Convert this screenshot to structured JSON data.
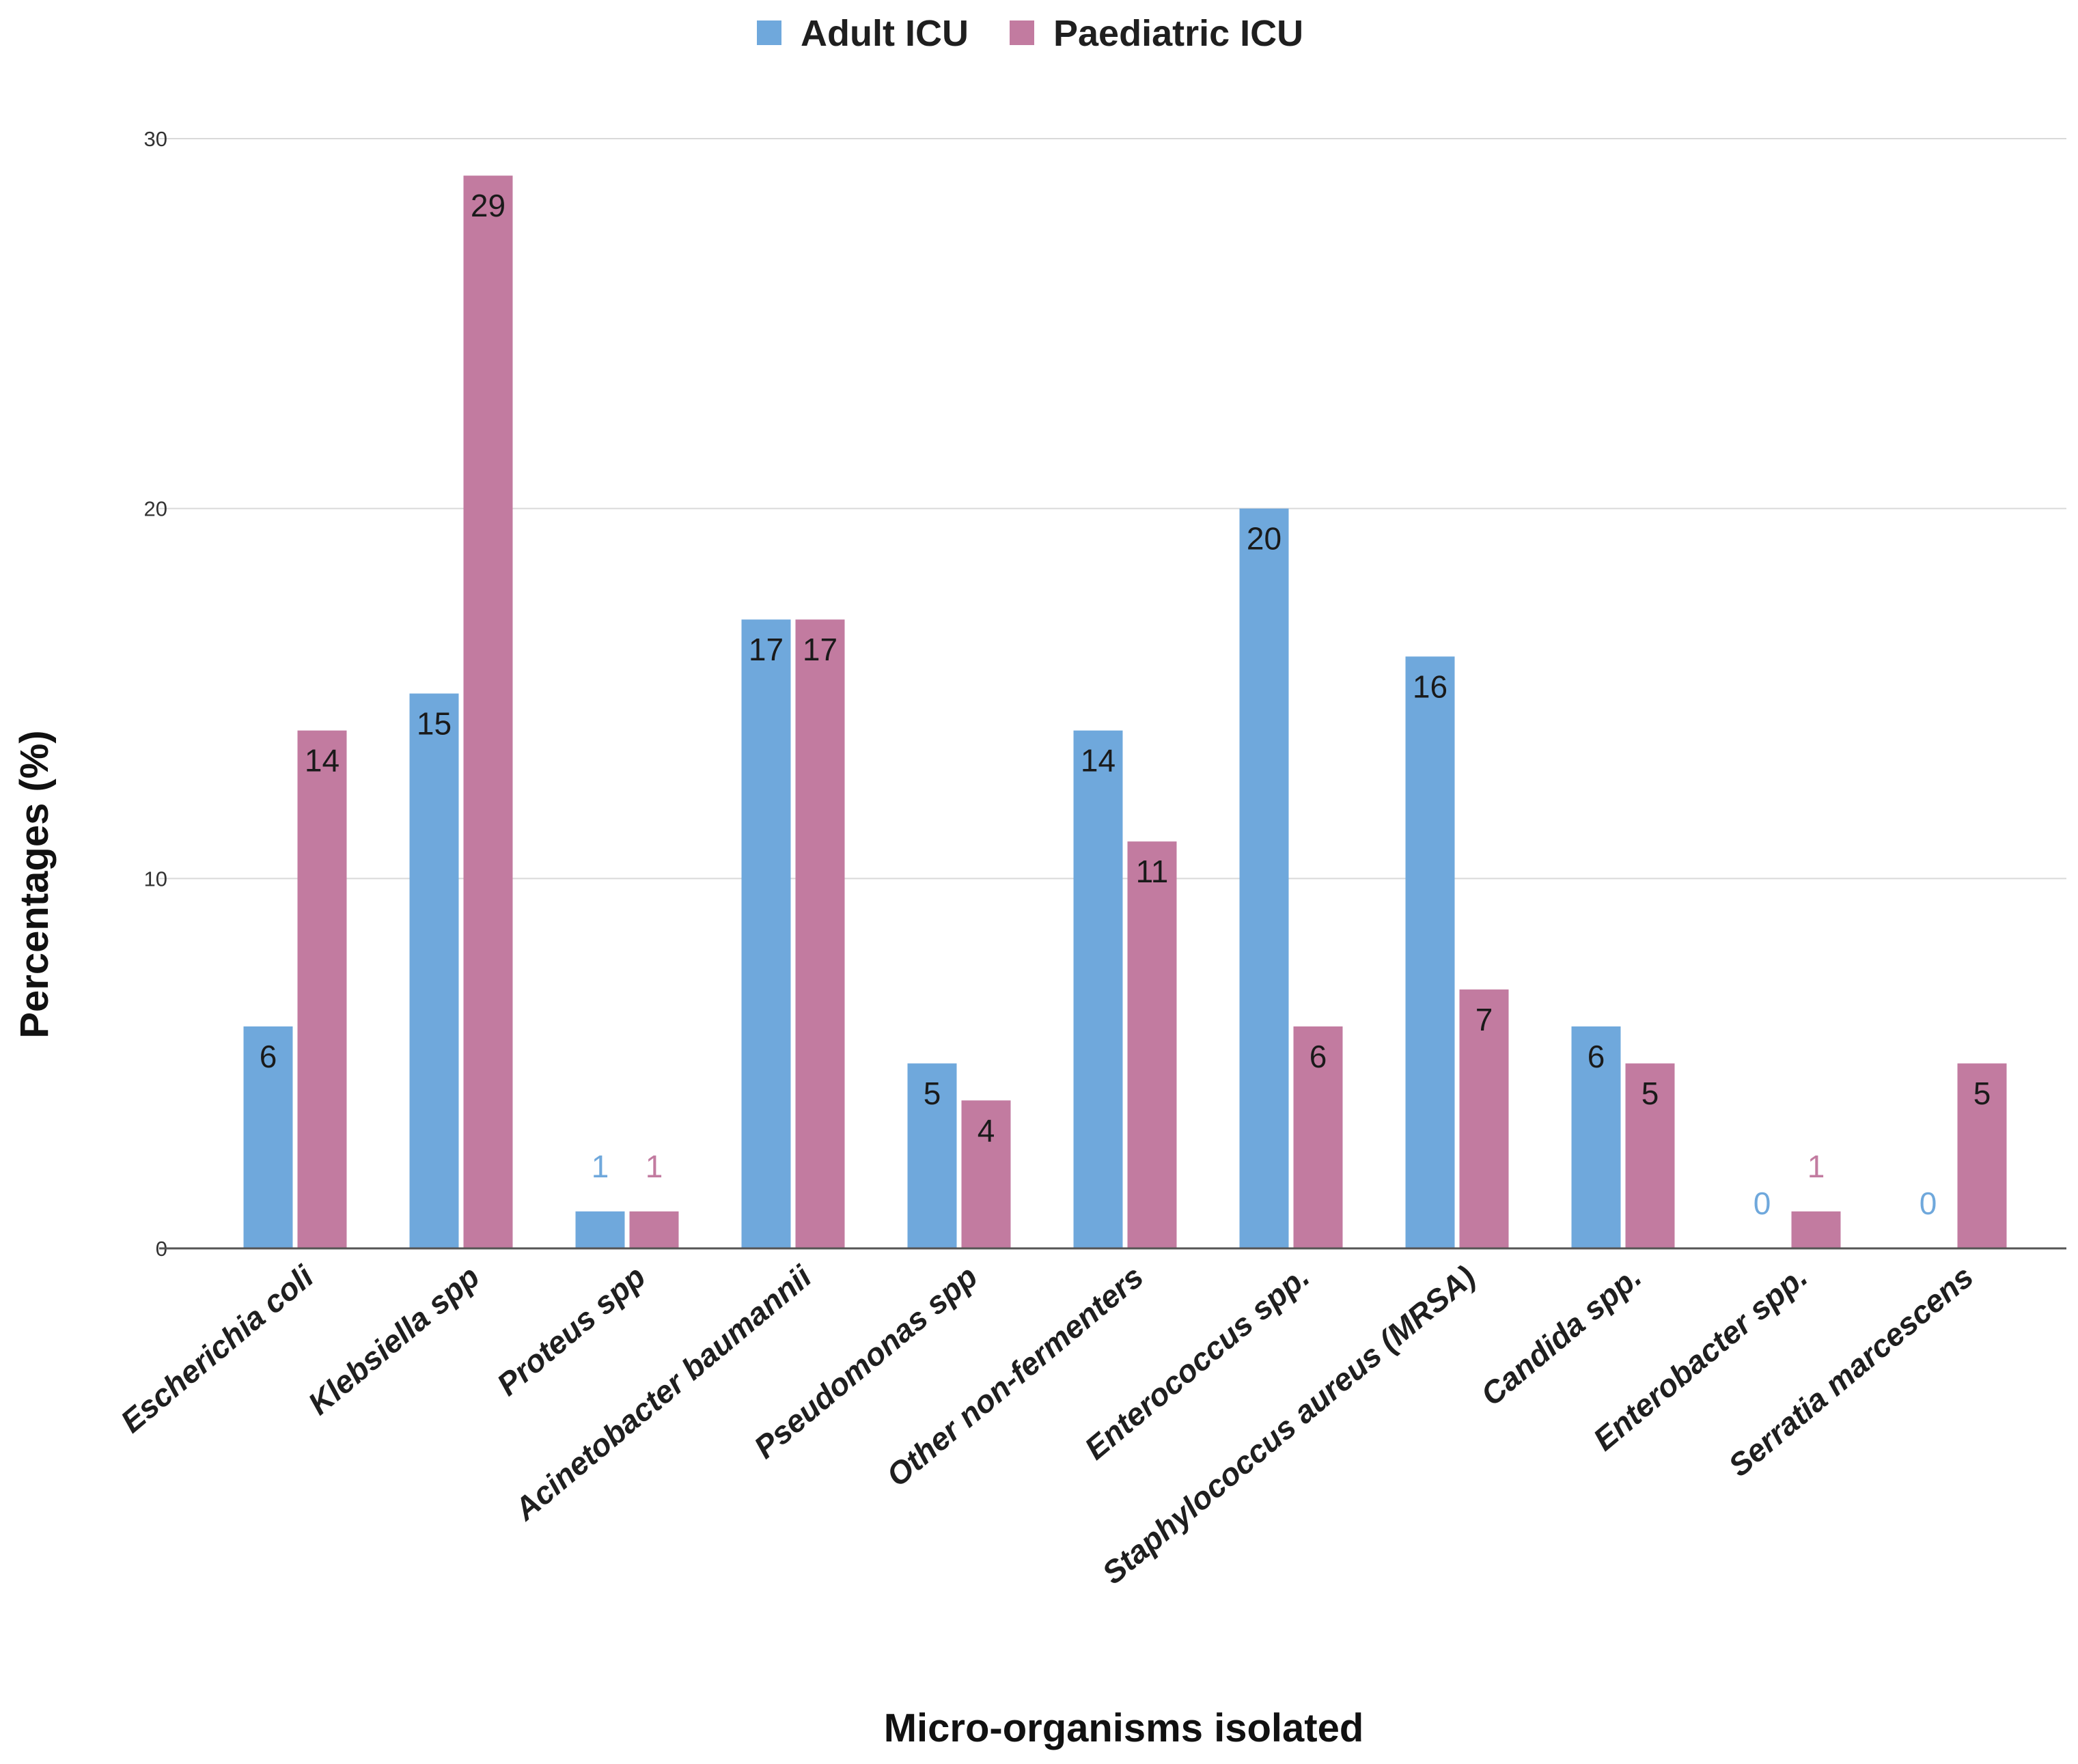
{
  "chart_data": {
    "type": "bar",
    "title": "",
    "xlabel": "Micro-organisms isolated",
    "ylabel": "Percentages (%)",
    "ylim": [
      0,
      30
    ],
    "yticks": [
      0,
      10,
      20,
      30
    ],
    "grid": true,
    "legend_position": "top-center",
    "categories": [
      "Escherichia coli",
      "Klebsiella spp",
      "Proteus spp",
      "Acinetobacter baumannii",
      "Pseudomonas spp",
      "Other non-fermenters",
      "Enterococcus spp.",
      "Staphylococcus aureus (MRSA)",
      "Candida spp.",
      "Enterobacter spp.",
      "Serratia marcescens"
    ],
    "series": [
      {
        "name": "Adult ICU",
        "color": "#6fa8dc",
        "values": [
          6,
          15,
          1,
          17,
          5,
          14,
          20,
          16,
          6,
          0,
          0
        ]
      },
      {
        "name": "Paediatric ICU",
        "color": "#c27ba0",
        "values": [
          14,
          29,
          1,
          17,
          4,
          11,
          6,
          7,
          5,
          1,
          5
        ]
      }
    ]
  }
}
